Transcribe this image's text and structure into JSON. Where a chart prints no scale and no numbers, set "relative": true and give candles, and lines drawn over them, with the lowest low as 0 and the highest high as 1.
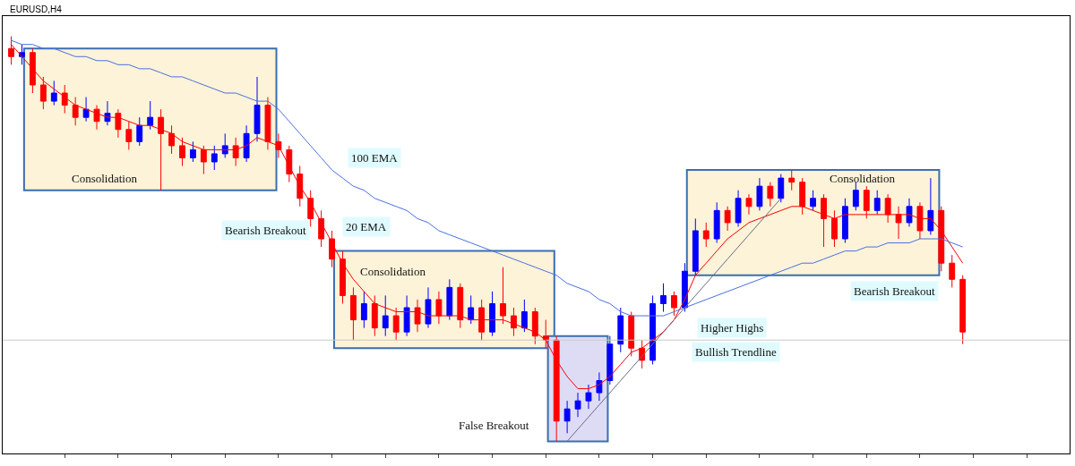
{
  "chart_data": {
    "type": "candlestick",
    "title": "EURUSD,H4",
    "relative": true,
    "grid": false,
    "categories": [
      null,
      null,
      null,
      null,
      null,
      null,
      null,
      null,
      null,
      null,
      null,
      null,
      null,
      null,
      null,
      null,
      null,
      null,
      null,
      null,
      null,
      null,
      null,
      null,
      null,
      null,
      null,
      null,
      null,
      null,
      null,
      null,
      null,
      null,
      null,
      null,
      null,
      null,
      null,
      null,
      null,
      null,
      null,
      null,
      null,
      null,
      null,
      null,
      null,
      null,
      null,
      null,
      null,
      null,
      null,
      null,
      null,
      null,
      null,
      null,
      null,
      null,
      null,
      null,
      null,
      null,
      null,
      null,
      null,
      null,
      null,
      null,
      null,
      null,
      null,
      null,
      null,
      null,
      null,
      null,
      null,
      null,
      null,
      null,
      null,
      null,
      null,
      null,
      null,
      null
    ],
    "ohlc": [
      [
        0.97,
        1.0,
        0.93,
        0.95
      ],
      [
        0.95,
        0.98,
        0.93,
        0.96
      ],
      [
        0.96,
        0.97,
        0.86,
        0.88
      ],
      [
        0.88,
        0.9,
        0.82,
        0.84
      ],
      [
        0.84,
        0.89,
        0.83,
        0.86
      ],
      [
        0.86,
        0.88,
        0.81,
        0.83
      ],
      [
        0.83,
        0.85,
        0.78,
        0.8
      ],
      [
        0.8,
        0.85,
        0.79,
        0.82
      ],
      [
        0.82,
        0.83,
        0.77,
        0.79
      ],
      [
        0.79,
        0.84,
        0.78,
        0.81
      ],
      [
        0.81,
        0.82,
        0.75,
        0.77
      ],
      [
        0.77,
        0.79,
        0.72,
        0.74
      ],
      [
        0.74,
        0.8,
        0.73,
        0.78
      ],
      [
        0.78,
        0.84,
        0.77,
        0.8
      ],
      [
        0.8,
        0.82,
        0.62,
        0.76
      ],
      [
        0.76,
        0.78,
        0.71,
        0.73
      ],
      [
        0.73,
        0.75,
        0.68,
        0.7
      ],
      [
        0.7,
        0.74,
        0.69,
        0.72
      ],
      [
        0.72,
        0.73,
        0.66,
        0.69
      ],
      [
        0.69,
        0.73,
        0.67,
        0.71
      ],
      [
        0.71,
        0.76,
        0.7,
        0.73
      ],
      [
        0.73,
        0.75,
        0.68,
        0.7
      ],
      [
        0.7,
        0.78,
        0.69,
        0.76
      ],
      [
        0.76,
        0.9,
        0.74,
        0.83
      ],
      [
        0.83,
        0.85,
        0.72,
        0.74
      ],
      [
        0.74,
        0.76,
        0.7,
        0.72
      ],
      [
        0.72,
        0.73,
        0.64,
        0.66
      ],
      [
        0.66,
        0.68,
        0.58,
        0.6
      ],
      [
        0.6,
        0.62,
        0.53,
        0.55
      ],
      [
        0.55,
        0.57,
        0.48,
        0.5
      ],
      [
        0.5,
        0.52,
        0.43,
        0.45
      ],
      [
        0.45,
        0.47,
        0.34,
        0.36
      ],
      [
        0.36,
        0.38,
        0.25,
        0.3
      ],
      [
        0.3,
        0.37,
        0.28,
        0.34
      ],
      [
        0.34,
        0.36,
        0.26,
        0.28
      ],
      [
        0.28,
        0.36,
        0.26,
        0.31
      ],
      [
        0.31,
        0.33,
        0.25,
        0.27
      ],
      [
        0.27,
        0.36,
        0.26,
        0.33
      ],
      [
        0.33,
        0.35,
        0.27,
        0.29
      ],
      [
        0.29,
        0.38,
        0.28,
        0.35
      ],
      [
        0.35,
        0.37,
        0.29,
        0.31
      ],
      [
        0.31,
        0.4,
        0.3,
        0.38
      ],
      [
        0.38,
        0.39,
        0.28,
        0.3
      ],
      [
        0.3,
        0.36,
        0.29,
        0.33
      ],
      [
        0.33,
        0.35,
        0.25,
        0.27
      ],
      [
        0.27,
        0.37,
        0.26,
        0.34
      ],
      [
        0.34,
        0.43,
        0.29,
        0.31
      ],
      [
        0.31,
        0.33,
        0.26,
        0.28
      ],
      [
        0.28,
        0.35,
        0.27,
        0.32
      ],
      [
        0.32,
        0.33,
        0.24,
        0.26
      ],
      [
        0.26,
        0.3,
        0.23,
        0.25
      ],
      [
        0.25,
        0.26,
        0.0,
        0.05
      ],
      [
        0.05,
        0.1,
        0.02,
        0.08
      ],
      [
        0.08,
        0.12,
        0.06,
        0.1
      ],
      [
        0.1,
        0.14,
        0.08,
        0.12
      ],
      [
        0.12,
        0.17,
        0.1,
        0.15
      ],
      [
        0.15,
        0.26,
        0.14,
        0.24
      ],
      [
        0.24,
        0.33,
        0.22,
        0.31
      ],
      [
        0.31,
        0.32,
        0.21,
        0.23
      ],
      [
        0.23,
        0.25,
        0.18,
        0.2
      ],
      [
        0.2,
        0.36,
        0.19,
        0.34
      ],
      [
        0.34,
        0.39,
        0.32,
        0.36
      ],
      [
        0.36,
        0.37,
        0.31,
        0.33
      ],
      [
        0.33,
        0.44,
        0.32,
        0.42
      ],
      [
        0.42,
        0.55,
        0.41,
        0.52
      ],
      [
        0.52,
        0.54,
        0.48,
        0.5
      ],
      [
        0.5,
        0.59,
        0.49,
        0.57
      ],
      [
        0.57,
        0.58,
        0.52,
        0.54
      ],
      [
        0.54,
        0.62,
        0.53,
        0.6
      ],
      [
        0.6,
        0.61,
        0.56,
        0.58
      ],
      [
        0.58,
        0.65,
        0.57,
        0.63
      ],
      [
        0.63,
        0.64,
        0.58,
        0.6
      ],
      [
        0.6,
        0.66,
        0.59,
        0.65
      ],
      [
        0.65,
        0.67,
        0.62,
        0.64
      ],
      [
        0.64,
        0.65,
        0.56,
        0.58
      ],
      [
        0.58,
        0.62,
        0.57,
        0.6
      ],
      [
        0.6,
        0.61,
        0.48,
        0.55
      ],
      [
        0.55,
        0.57,
        0.48,
        0.5
      ],
      [
        0.5,
        0.6,
        0.49,
        0.58
      ],
      [
        0.58,
        0.64,
        0.57,
        0.62
      ],
      [
        0.62,
        0.63,
        0.55,
        0.57
      ],
      [
        0.57,
        0.62,
        0.56,
        0.6
      ],
      [
        0.6,
        0.61,
        0.54,
        0.56
      ],
      [
        0.56,
        0.58,
        0.5,
        0.54
      ],
      [
        0.54,
        0.6,
        0.53,
        0.58
      ],
      [
        0.58,
        0.59,
        0.5,
        0.52
      ],
      [
        0.52,
        0.65,
        0.51,
        0.57
      ],
      [
        0.57,
        0.58,
        0.42,
        0.44
      ],
      [
        0.44,
        0.46,
        0.38,
        0.4
      ],
      [
        0.4,
        0.41,
        0.24,
        0.27
      ]
    ],
    "colors": [
      "#ff0000",
      "#0000ff",
      "#ff0000",
      "#ff0000",
      "#0000ff",
      "#ff0000",
      "#ff0000",
      "#0000ff",
      "#ff0000",
      "#0000ff",
      "#ff0000",
      "#ff0000",
      "#0000ff",
      "#0000ff",
      "#ff0000",
      "#ff0000",
      "#ff0000",
      "#0000ff",
      "#ff0000",
      "#0000ff",
      "#0000ff",
      "#ff0000",
      "#0000ff",
      "#0000ff",
      "#ff0000",
      "#ff0000",
      "#ff0000",
      "#ff0000",
      "#ff0000",
      "#ff0000",
      "#ff0000",
      "#ff0000",
      "#ff0000",
      "#0000ff",
      "#ff0000",
      "#0000ff",
      "#ff0000",
      "#0000ff",
      "#ff0000",
      "#0000ff",
      "#ff0000",
      "#0000ff",
      "#ff0000",
      "#0000ff",
      "#ff0000",
      "#0000ff",
      "#ff0000",
      "#ff0000",
      "#0000ff",
      "#ff0000",
      "#ff0000",
      "#ff0000",
      "#0000ff",
      "#0000ff",
      "#0000ff",
      "#0000ff",
      "#0000ff",
      "#0000ff",
      "#ff0000",
      "#ff0000",
      "#0000ff",
      "#0000ff",
      "#ff0000",
      "#0000ff",
      "#0000ff",
      "#ff0000",
      "#0000ff",
      "#ff0000",
      "#0000ff",
      "#ff0000",
      "#0000ff",
      "#ff0000",
      "#0000ff",
      "#ff0000",
      "#ff0000",
      "#0000ff",
      "#ff0000",
      "#ff0000",
      "#0000ff",
      "#0000ff",
      "#ff0000",
      "#0000ff",
      "#ff0000",
      "#ff0000",
      "#0000ff",
      "#ff0000",
      "#0000ff",
      "#ff0000",
      "#ff0000",
      "#ff0000"
    ],
    "series": [
      {
        "type": "line",
        "color": "#ff0000",
        "values": [
          0.98,
          0.95,
          0.92,
          0.89,
          0.87,
          0.85,
          0.83,
          0.82,
          0.81,
          0.8,
          0.8,
          0.79,
          0.78,
          0.78,
          0.77,
          0.76,
          0.74,
          0.73,
          0.72,
          0.72,
          0.72,
          0.72,
          0.73,
          0.75,
          0.74,
          0.73,
          0.68,
          0.63,
          0.59,
          0.54,
          0.49,
          0.44,
          0.4,
          0.37,
          0.34,
          0.33,
          0.32,
          0.32,
          0.32,
          0.31,
          0.31,
          0.31,
          0.31,
          0.3,
          0.3,
          0.3,
          0.3,
          0.29,
          0.28,
          0.27,
          0.25,
          0.2,
          0.16,
          0.13,
          0.13,
          0.14,
          0.16,
          0.19,
          0.22,
          0.23,
          0.25,
          0.27,
          0.3,
          0.35,
          0.41,
          0.44,
          0.47,
          0.5,
          0.52,
          0.54,
          0.55,
          0.56,
          0.57,
          0.58,
          0.58,
          0.57,
          0.56,
          0.55,
          0.56,
          0.56,
          0.56,
          0.56,
          0.56,
          0.56,
          0.56,
          0.55,
          0.55,
          0.52,
          0.48,
          0.44
        ]
      },
      {
        "type": "line",
        "color": "#4a6fe3",
        "values": [
          0.99,
          0.98,
          0.98,
          0.97,
          0.97,
          0.96,
          0.95,
          0.95,
          0.94,
          0.94,
          0.93,
          0.93,
          0.92,
          0.92,
          0.91,
          0.9,
          0.9,
          0.89,
          0.88,
          0.87,
          0.86,
          0.86,
          0.85,
          0.84,
          0.84,
          0.82,
          0.79,
          0.76,
          0.73,
          0.7,
          0.67,
          0.65,
          0.63,
          0.62,
          0.6,
          0.59,
          0.58,
          0.57,
          0.55,
          0.54,
          0.52,
          0.51,
          0.5,
          0.49,
          0.48,
          0.47,
          0.46,
          0.45,
          0.44,
          0.43,
          0.42,
          0.41,
          0.39,
          0.38,
          0.37,
          0.35,
          0.34,
          0.32,
          0.31,
          0.31,
          0.31,
          0.31,
          0.32,
          0.33,
          0.34,
          0.35,
          0.36,
          0.37,
          0.38,
          0.39,
          0.4,
          0.41,
          0.42,
          0.43,
          0.44,
          0.44,
          0.45,
          0.46,
          0.47,
          0.47,
          0.48,
          0.48,
          0.49,
          0.49,
          0.49,
          0.5,
          0.5,
          0.5,
          0.49,
          0.48
        ]
      },
      {
        "type": "line",
        "color": "#6a6a8a",
        "values": [
          null,
          null,
          null,
          null,
          null,
          null,
          null,
          null,
          null,
          null,
          null,
          null,
          null,
          null,
          null,
          null,
          null,
          null,
          null,
          null,
          null,
          null,
          null,
          null,
          null,
          null,
          null,
          null,
          null,
          null,
          null,
          null,
          null,
          null,
          null,
          null,
          null,
          null,
          null,
          null,
          null,
          null,
          null,
          null,
          null,
          null,
          null,
          null,
          null,
          null,
          null,
          null,
          0.0,
          0.03,
          0.06,
          0.09,
          0.12,
          0.15,
          0.18,
          0.21,
          0.24,
          0.27,
          0.3,
          0.33,
          0.36,
          0.39,
          0.42,
          0.45,
          0.48,
          0.51,
          0.54,
          0.57,
          0.6,
          null,
          null,
          null,
          null,
          null,
          null,
          null,
          null,
          null,
          null,
          null,
          null,
          null,
          null,
          null,
          null,
          null
        ]
      }
    ],
    "ref_lines": [
      {
        "axis": "y",
        "value": 0.25,
        "color": "#c8c8c8"
      }
    ],
    "annotations": [
      "Consolidation",
      "100 EMA",
      "20 EMA",
      "Bearish Breakout",
      "Consolidation",
      "False Breakout",
      "Higher Highs",
      "Bullish Trendline",
      "Consolidation",
      "Bearish Breakout"
    ]
  }
}
